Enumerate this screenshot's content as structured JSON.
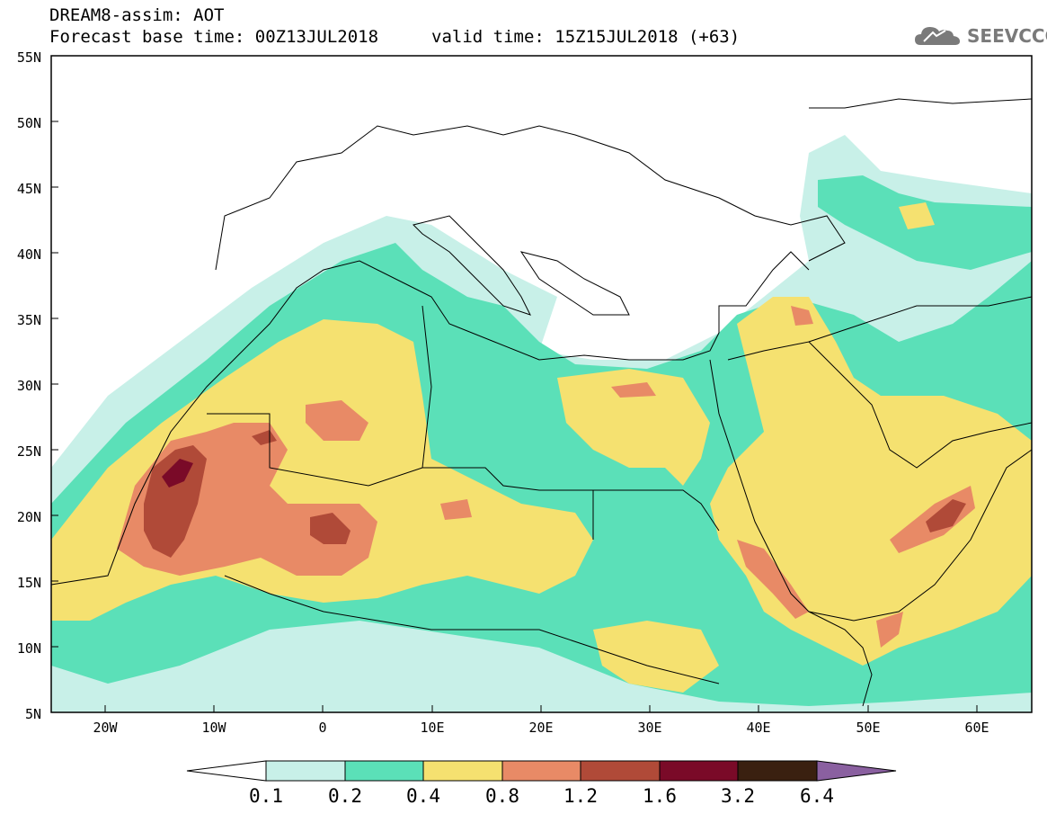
{
  "header": {
    "title": "DREAM8-assim: AOT",
    "forecast_line": "Forecast base time: 00Z13JUL2018",
    "valid_line": "valid time: 15Z15JUL2018 (+63)"
  },
  "logo": {
    "text": "SEEVCCC",
    "icon": "cloud-icon"
  },
  "map": {
    "lat_labels": [
      "55N",
      "50N",
      "45N",
      "40N",
      "35N",
      "30N",
      "25N",
      "20N",
      "15N",
      "10N",
      "5N"
    ],
    "lon_labels": [
      "20W",
      "10W",
      "0",
      "10E",
      "20E",
      "30E",
      "40E",
      "50E",
      "60E"
    ],
    "lat_range": [
      5,
      55
    ],
    "lon_range": [
      -25,
      65
    ]
  },
  "legend": {
    "thresholds": [
      "0.1",
      "0.2",
      "0.4",
      "0.8",
      "1.2",
      "1.6",
      "3.2",
      "6.4"
    ],
    "colors": [
      "#ffffff",
      "#c8f0e8",
      "#5be0b8",
      "#f5e170",
      "#e88a66",
      "#b04a38",
      "#7a0a28",
      "#3a2010",
      "#8a60a0"
    ]
  }
}
